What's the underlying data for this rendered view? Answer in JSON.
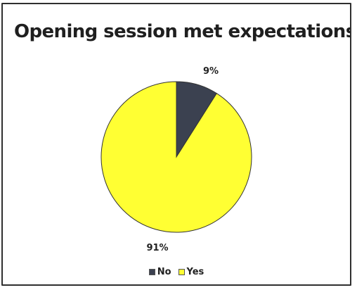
{
  "chart_data": {
    "type": "pie",
    "title": "Opening session met expectations",
    "categories": [
      "No",
      "Yes"
    ],
    "values": [
      9,
      91
    ],
    "data_labels": [
      "9%",
      "91%"
    ],
    "colors": [
      "#3b4150",
      "#ffff33"
    ],
    "legend_position": "bottom",
    "start_angle": "12 o'clock, clockwise"
  }
}
